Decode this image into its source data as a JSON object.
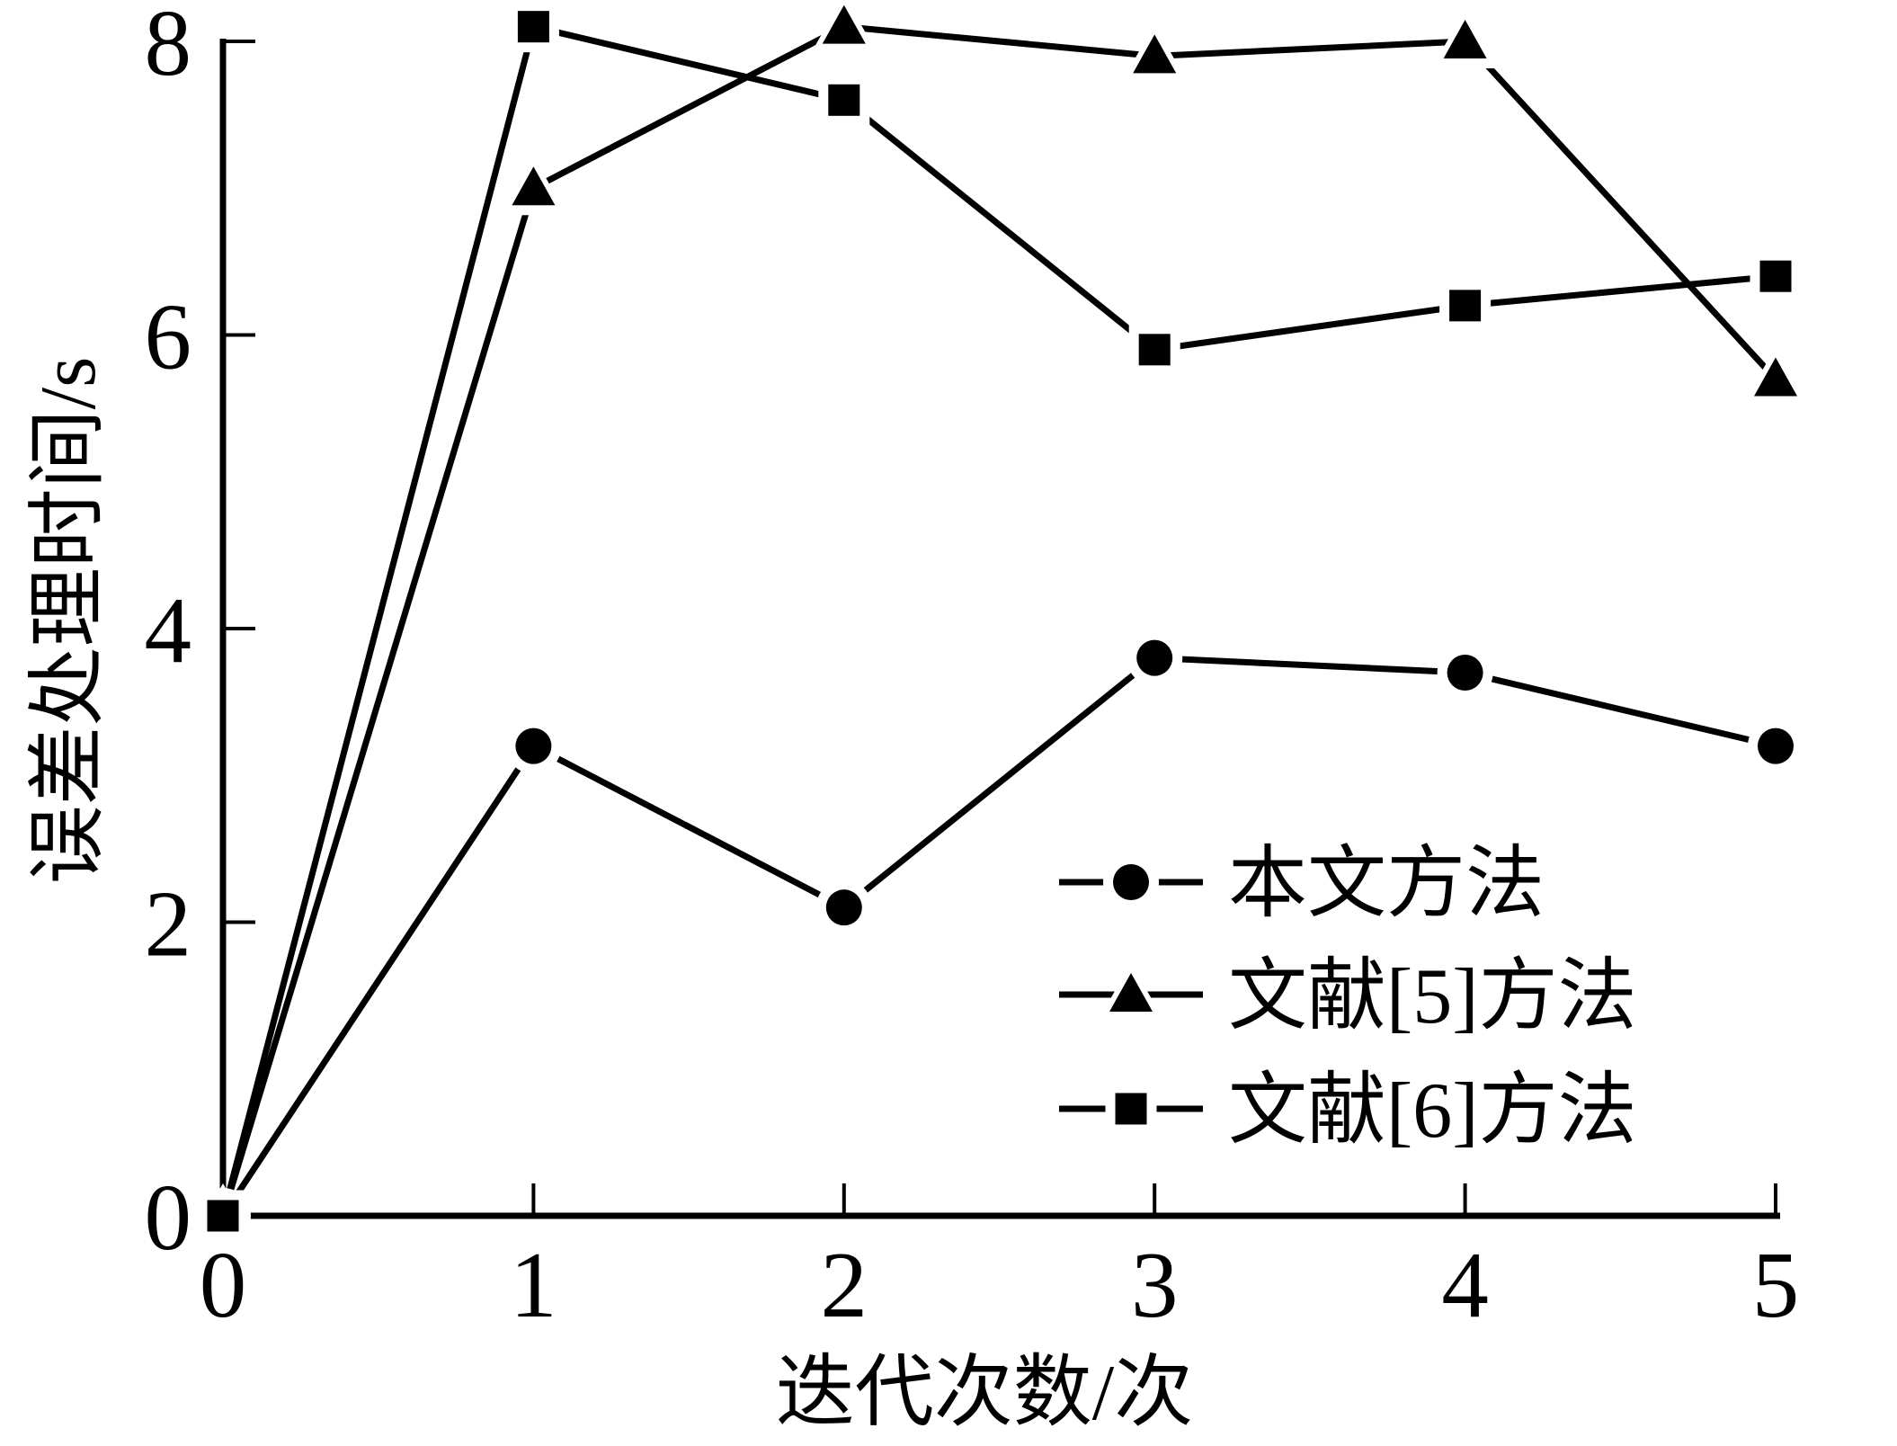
{
  "figure": {
    "background": "#ffffff",
    "ink_color": "#000000"
  },
  "chart_data": {
    "type": "line",
    "title": "",
    "xlabel": "迭代次数/次",
    "ylabel": "误差处理时间/s",
    "x": [
      0,
      1,
      2,
      3,
      4,
      5
    ],
    "xlim": [
      0,
      5
    ],
    "ylim": [
      0,
      8
    ],
    "xticks": [
      "0",
      "1",
      "2",
      "3",
      "4",
      "5"
    ],
    "yticks": [
      "0",
      "2",
      "4",
      "6",
      "8"
    ],
    "grid": false,
    "legend_position": "inside-right-middle",
    "series": [
      {
        "name": "本文方法",
        "marker": "circle",
        "values": [
          0,
          3.2,
          2.1,
          3.8,
          3.7,
          3.2
        ]
      },
      {
        "name": "文献[5]方法",
        "marker": "triangle",
        "values": [
          0,
          7.0,
          8.1,
          7.9,
          8.0,
          5.7
        ]
      },
      {
        "name": "文献[6]方法",
        "marker": "square",
        "values": [
          0,
          8.1,
          7.6,
          5.9,
          6.2,
          6.4
        ]
      }
    ]
  }
}
